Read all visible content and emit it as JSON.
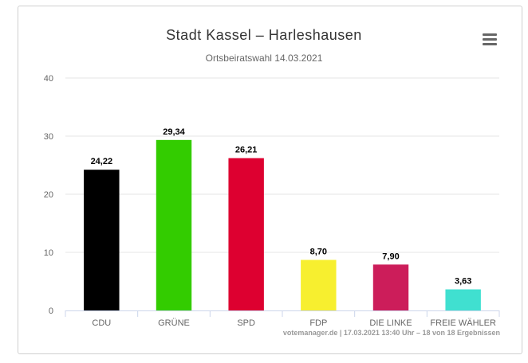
{
  "title": "Stadt Kassel – Harleshausen",
  "subtitle": "Ortsbeiratswahl 14.03.2021",
  "credits": "votemanager.de | 17.03.2021 13:40 Uhr – 18 von 18 Ergebnissen",
  "menu_icon": "hamburger-menu-icon",
  "chart_data": {
    "type": "bar",
    "title": "Stadt Kassel – Harleshausen",
    "subtitle": "Ortsbeiratswahl 14.03.2021",
    "categories": [
      "CDU",
      "GRÜNE",
      "SPD",
      "FDP",
      "DIE LINKE",
      "FREIE WÄHLER"
    ],
    "values": [
      24.22,
      29.34,
      26.21,
      8.7,
      7.9,
      3.63
    ],
    "value_labels": [
      "24,22",
      "29,34",
      "26,21",
      "8,70",
      "7,90",
      "3,63"
    ],
    "colors": [
      "#000000",
      "#33cc00",
      "#dd0030",
      "#f7ef2f",
      "#cc1d5a",
      "#40e0d0"
    ],
    "yticks": [
      0,
      10,
      20,
      30,
      40
    ],
    "ylim": [
      0,
      40
    ],
    "grid": true,
    "legend": "none"
  }
}
